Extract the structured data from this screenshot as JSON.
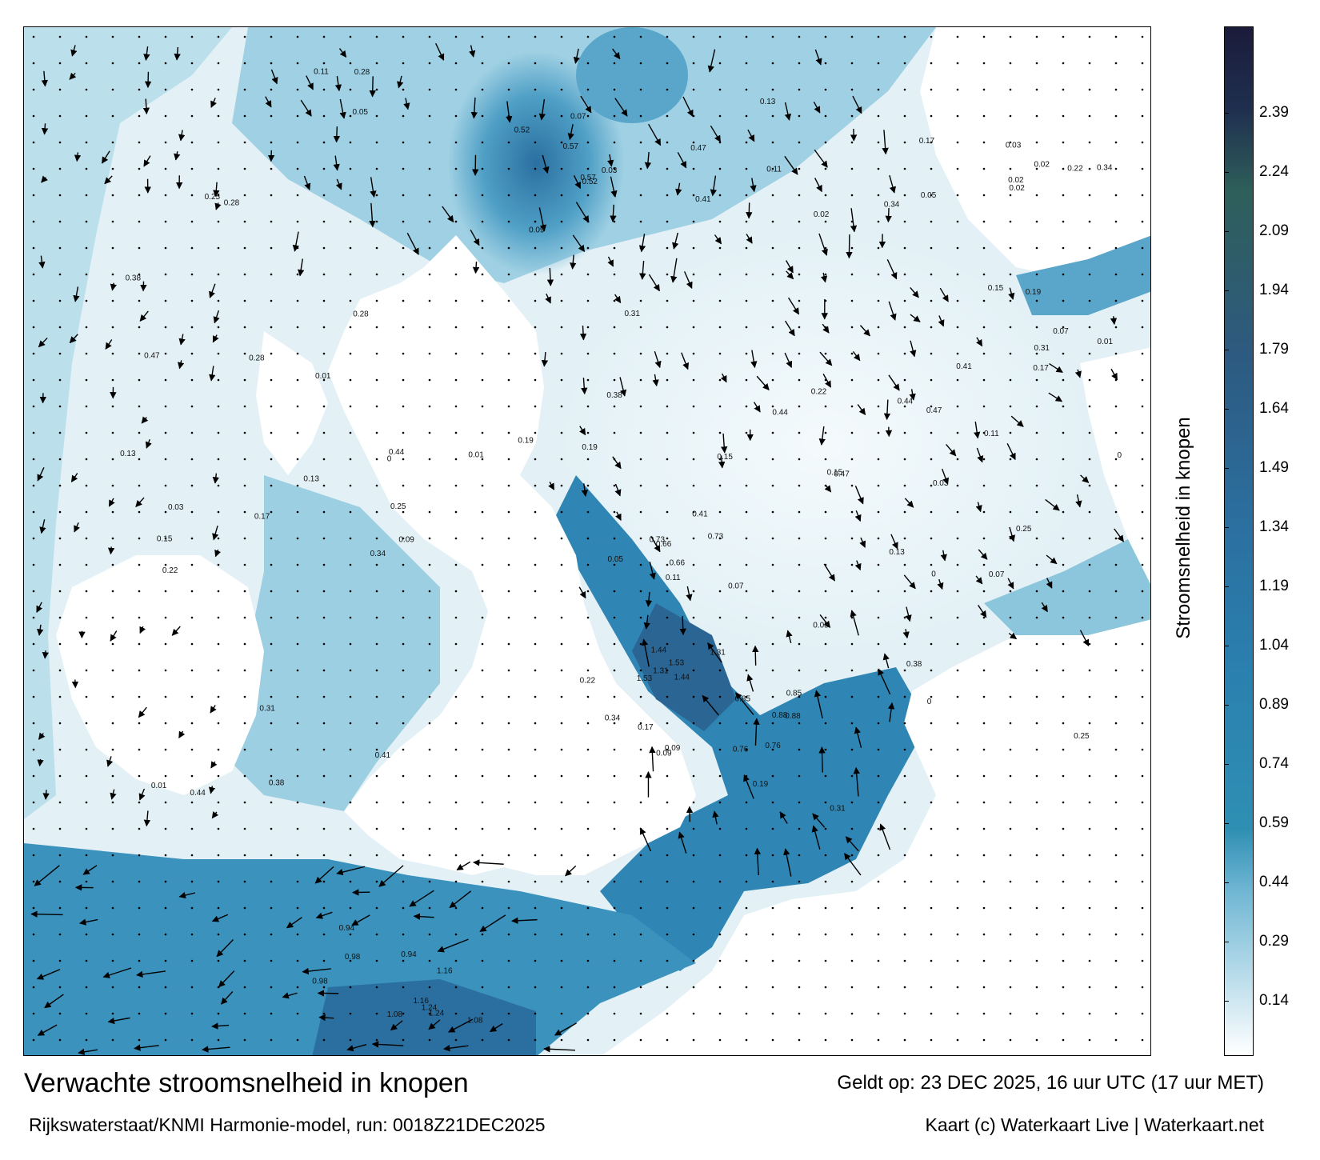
{
  "title": "Verwachte stroomsnelheid in knopen",
  "subtitle": "Rijkswaterstaat/KNMI Harmonie-model, run: 0018Z21DEC2025",
  "valid_time": "Geldt op: 23 DEC 2025, 16 uur UTC (17 uur MET)",
  "credit": "Kaart (c) Waterkaart Live | Waterkaart.net",
  "colorbar": {
    "title": "Stroomsnelheid in knopen",
    "ticks": [
      "2.39",
      "2.24",
      "2.09",
      "1.94",
      "1.79",
      "1.64",
      "1.49",
      "1.34",
      "1.19",
      "1.04",
      "0.89",
      "0.74",
      "0.59",
      "0.44",
      "0.29",
      "0.14"
    ],
    "tick_values": [
      2.39,
      2.24,
      2.09,
      1.94,
      1.79,
      1.64,
      1.49,
      1.34,
      1.19,
      1.04,
      0.89,
      0.74,
      0.59,
      0.44,
      0.29,
      0.14
    ],
    "range": [
      0,
      2.61
    ],
    "colors": {
      "low": "#ffffff",
      "mid_low": "#6fb6d3",
      "mid": "#2f8fb3",
      "mid_high": "#2b6f9f",
      "high": "#2d5a80",
      "teal_band": "#2e5f5a",
      "top": "#1b1b3a"
    }
  },
  "map_colors": {
    "land": "#ffffff",
    "sea_light": "#dceef5",
    "sea_mid": "#8cc6dc",
    "sea_strong": "#3c93bd",
    "sea_fast": "#2a6fa0",
    "arrow": "#000000",
    "grid_dot": "#000000"
  },
  "sample_labels": [
    {
      "text": "1.53",
      "region": "channel-narrows"
    },
    {
      "text": "1.44",
      "region": "channel-narrows"
    },
    {
      "text": "1.31",
      "region": "channel-narrows"
    },
    {
      "text": "1.24",
      "region": "north-channel"
    },
    {
      "text": "1.16",
      "region": "north-channel"
    },
    {
      "text": "1.08",
      "region": "north-channel"
    },
    {
      "text": "0.98",
      "region": "irish-sea"
    },
    {
      "text": "0.94",
      "region": "irish-sea"
    },
    {
      "text": "0.88",
      "region": "dover"
    },
    {
      "text": "0.85",
      "region": "dover"
    },
    {
      "text": "0.76",
      "region": "thames"
    },
    {
      "text": "0.73",
      "region": "wadden"
    },
    {
      "text": "0.66",
      "region": "wadden"
    },
    {
      "text": "0.57",
      "region": "orkney"
    },
    {
      "text": "0.52",
      "region": "orkney"
    },
    {
      "text": "0.47",
      "region": "north-sea"
    },
    {
      "text": "0.44",
      "region": "north-sea"
    },
    {
      "text": "0.41",
      "region": "north-sea"
    },
    {
      "text": "0.38",
      "region": "north-sea"
    },
    {
      "text": "0.34",
      "region": "north-sea"
    },
    {
      "text": "0.31",
      "region": "north-sea"
    },
    {
      "text": "0.28",
      "region": "north-sea"
    },
    {
      "text": "0.25",
      "region": "north-sea"
    },
    {
      "text": "0.22",
      "region": "north-sea"
    },
    {
      "text": "0.19",
      "region": "north-sea"
    },
    {
      "text": "0.17",
      "region": "north-sea"
    },
    {
      "text": "0.15",
      "region": "north-sea"
    },
    {
      "text": "0.13",
      "region": "north-sea"
    },
    {
      "text": "0.11",
      "region": "north-sea"
    },
    {
      "text": "0.09",
      "region": "north-sea"
    },
    {
      "text": "0.07",
      "region": "north-sea"
    },
    {
      "text": "0.05",
      "region": "north-sea"
    },
    {
      "text": "0.03",
      "region": "north-sea"
    },
    {
      "text": "0.02",
      "region": "north-sea"
    },
    {
      "text": "0.01",
      "region": "north-sea"
    },
    {
      "text": "0",
      "region": "north-sea"
    }
  ]
}
